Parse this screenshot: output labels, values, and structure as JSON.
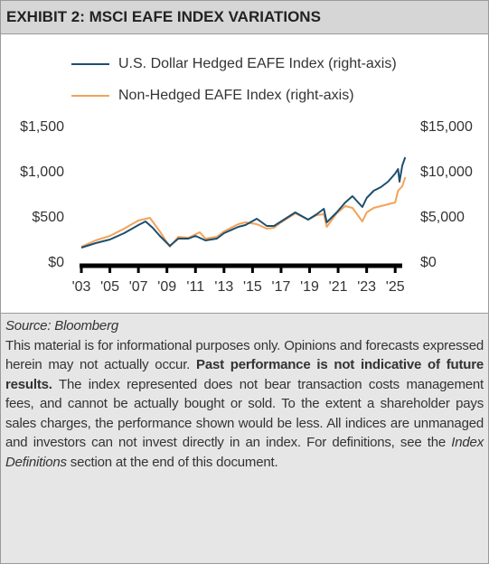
{
  "chart_data": {
    "type": "line",
    "title": "EXHIBIT 2: MSCI EAFE INDEX VARIATIONS",
    "series": [
      {
        "name": "U.S. Dollar Hedged EAFE Index (right-axis)",
        "color": "#1c4f6e",
        "axis": "y2",
        "x": [
          2003,
          2004,
          2005,
          2006,
          2007,
          2007.5,
          2008,
          2008.5,
          2009.2,
          2009.8,
          2010.5,
          2011,
          2011.7,
          2012.5,
          2013,
          2014,
          2014.5,
          2015.3,
          2016,
          2016.5,
          2017,
          2018,
          2018.9,
          2019.5,
          2020,
          2020.2,
          2020.9,
          2021.5,
          2022,
          2022.7,
          2023,
          2023.5,
          2024,
          2024.5,
          2025,
          2025.2,
          2025.3,
          2025.5,
          2025.7
        ],
        "values": [
          1700,
          2200,
          2600,
          3300,
          4200,
          4600,
          3900,
          3000,
          1900,
          2700,
          2700,
          3000,
          2500,
          2700,
          3300,
          4000,
          4200,
          4900,
          4100,
          4100,
          4600,
          5600,
          4800,
          5400,
          6000,
          4500,
          5600,
          6700,
          7400,
          6200,
          7200,
          8000,
          8400,
          9000,
          9900,
          10400,
          9000,
          10800,
          11700
        ]
      },
      {
        "name": "Non-Hedged EAFE Index (right-axis)",
        "color": "#f4a259",
        "axis": "y2",
        "x": [
          2003,
          2004,
          2005,
          2006,
          2007,
          2007.8,
          2008.5,
          2009.2,
          2009.8,
          2010.5,
          2011.3,
          2011.7,
          2012.5,
          2013,
          2014,
          2014.5,
          2015.3,
          2016,
          2016.5,
          2017,
          2018,
          2018.9,
          2019.5,
          2020,
          2020.2,
          2020.9,
          2021.5,
          2022,
          2022.7,
          2023,
          2023.5,
          2024,
          2024.5,
          2025,
          2025.2,
          2025.5,
          2025.7
        ],
        "values": [
          1800,
          2500,
          3000,
          3800,
          4700,
          5000,
          3500,
          1800,
          2900,
          2800,
          3400,
          2700,
          2900,
          3500,
          4300,
          4500,
          4300,
          3800,
          3900,
          4500,
          5500,
          4800,
          5300,
          5400,
          4000,
          5500,
          6300,
          6100,
          4600,
          5600,
          6100,
          6300,
          6500,
          6700,
          8000,
          8500,
          9500
        ]
      }
    ],
    "xlim": [
      2003,
      2026
    ],
    "xticks": [
      {
        "value": 2003,
        "label": "'03"
      },
      {
        "value": 2005,
        "label": "'05"
      },
      {
        "value": 2007,
        "label": "'07"
      },
      {
        "value": 2009,
        "label": "'09"
      },
      {
        "value": 2011,
        "label": "'11"
      },
      {
        "value": 2013,
        "label": "'13"
      },
      {
        "value": 2015,
        "label": "'15"
      },
      {
        "value": 2017,
        "label": "'17"
      },
      {
        "value": 2019,
        "label": "'19"
      },
      {
        "value": 2021,
        "label": "'21"
      },
      {
        "value": 2023,
        "label": "'23"
      },
      {
        "value": 2025,
        "label": "'25"
      }
    ],
    "ylim": [
      0,
      1500
    ],
    "yticks": [
      {
        "value": 0,
        "label": "$0"
      },
      {
        "value": 500,
        "label": "$500"
      },
      {
        "value": 1000,
        "label": "$1,000"
      },
      {
        "value": 1500,
        "label": "$1,500"
      }
    ],
    "y2lim": [
      0,
      15000
    ],
    "y2ticks": [
      {
        "value": 0,
        "label": "$0"
      },
      {
        "value": 5000,
        "label": "$5,000"
      },
      {
        "value": 10000,
        "label": "$10,000"
      },
      {
        "value": 15000,
        "label": "$15,000"
      }
    ],
    "grid": false
  },
  "footer": {
    "source": "Source: Bloomberg",
    "text": [
      "This material is for informational purposes only. Opinions and forecasts expressed herein may not actually occur. ",
      "Past performance is not indicative of future results.",
      " The index represented does not bear transaction costs management fees, and cannot be actually bought or sold. To the extent a shareholder pays sales charges, the performance shown would be less. All indices are unmanaged and investors can not invest directly in an index. For definitions, see the ",
      "Index Definitions",
      " section at the end of this document."
    ]
  }
}
